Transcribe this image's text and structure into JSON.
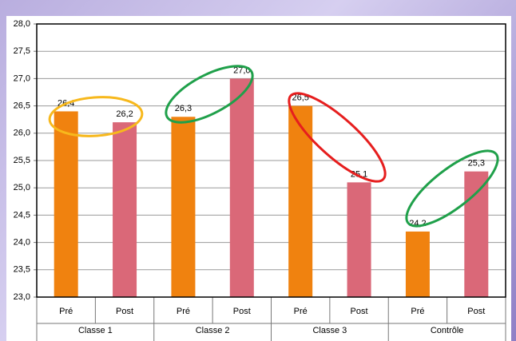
{
  "chart_data": {
    "type": "bar",
    "categories": [
      "Pré",
      "Post",
      "Pré",
      "Post",
      "Pré",
      "Post",
      "Pré",
      "Post"
    ],
    "groups": [
      "Classe 1",
      "Classe 2",
      "Classe 3",
      "Contrôle"
    ],
    "values": [
      26.4,
      26.2,
      26.3,
      27.0,
      26.5,
      25.1,
      24.2,
      25.3
    ],
    "value_labels": [
      "26,4",
      "26,2",
      "26,3",
      "27,0",
      "26,5",
      "25,1",
      "24,2",
      "25,3"
    ],
    "colors": [
      "#f0820f",
      "#da6878",
      "#f0820f",
      "#da6878",
      "#f0820f",
      "#da6878",
      "#f0820f",
      "#da6878"
    ],
    "ylim": [
      23.0,
      28.0
    ],
    "yticks": [
      {
        "value": 23.0,
        "label": "23,0"
      },
      {
        "value": 23.5,
        "label": "23,5"
      },
      {
        "value": 24.0,
        "label": "24,0"
      },
      {
        "value": 24.5,
        "label": "24,5"
      },
      {
        "value": 25.0,
        "label": "25,0"
      },
      {
        "value": 25.5,
        "label": "25,5"
      },
      {
        "value": 26.0,
        "label": "26,0"
      },
      {
        "value": 26.5,
        "label": "26,5"
      },
      {
        "value": 27.0,
        "label": "27,0"
      },
      {
        "value": 27.5,
        "label": "27,5"
      },
      {
        "value": 28.0,
        "label": "28,0"
      }
    ],
    "grid": true
  }
}
